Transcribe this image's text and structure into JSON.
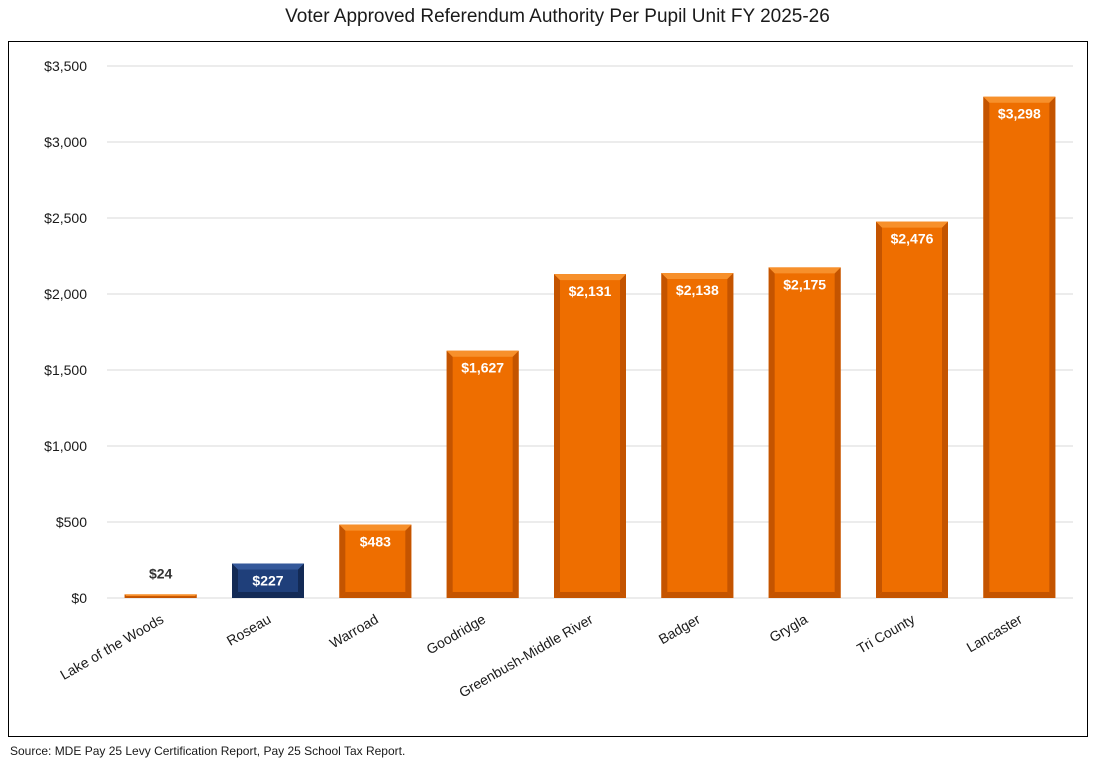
{
  "chart_data": {
    "type": "bar",
    "title": "Voter Approved Referendum Authority Per Pupil Unit FY 2025-26",
    "xlabel": "",
    "ylabel": "",
    "ylim": [
      0,
      3500
    ],
    "yticks": [
      0,
      500,
      1000,
      1500,
      2000,
      2500,
      3000,
      3500
    ],
    "ytick_labels": [
      "$0",
      "$500",
      "$1,000",
      "$1,500",
      "$2,000",
      "$2,500",
      "$3,000",
      "$3,500"
    ],
    "grid": true,
    "categories": [
      "Lake of the Woods",
      "Roseau",
      "Warroad",
      "Goodridge",
      "Greenbush-Middle River",
      "Badger",
      "Grygla",
      "Tri County",
      "Lancaster"
    ],
    "values": [
      24,
      227,
      483,
      1627,
      2131,
      2138,
      2175,
      2476,
      3298
    ],
    "data_labels": [
      "$24",
      "$227",
      "$483",
      "$1,627",
      "$2,131",
      "$2,138",
      "$2,175",
      "$2,476",
      "$3,298"
    ],
    "highlight_category": "Roseau",
    "colors": {
      "bar": "#EE6E00",
      "bar_dark": "#C45400",
      "bar_light": "#F7902B",
      "highlight": "#1F3F7A",
      "highlight_dark": "#132A55",
      "highlight_light": "#34589A",
      "grid": "#D9D9D9",
      "axis_text": "#1a1a1a",
      "label_inside": "#FFFFFF",
      "label_outside": "#333333"
    }
  },
  "source": "Source:  MDE Pay 25 Levy Certification Report, Pay 25 School Tax Report."
}
